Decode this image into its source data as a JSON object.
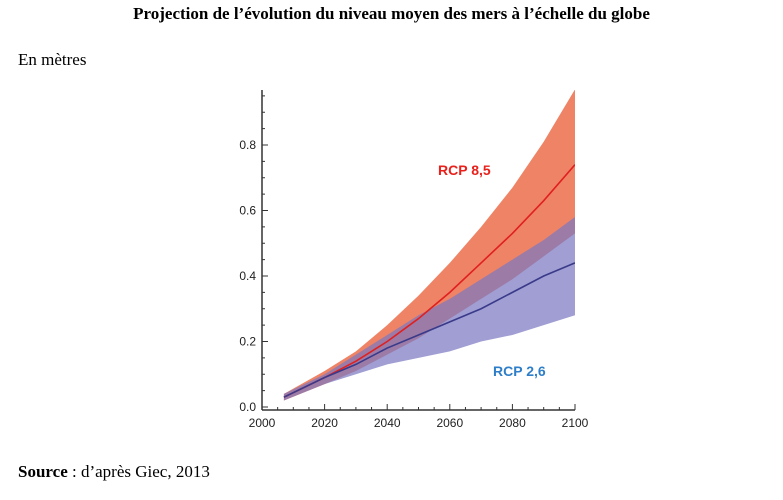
{
  "title": "Projection de l’évolution du niveau moyen des mers à l’échelle du globe",
  "unit_label": "En mètres",
  "source": {
    "bold": "Source",
    "rest": " : d’après Giec, 2013"
  },
  "chart_data": {
    "type": "area",
    "xlabel": "",
    "ylabel": "En mètres",
    "xlim": [
      2000,
      2100
    ],
    "ylim": [
      0,
      0.95
    ],
    "x_ticks": [
      2000,
      2020,
      2040,
      2060,
      2080,
      2100
    ],
    "y_ticks": [
      0.0,
      0.2,
      0.4,
      0.6,
      0.8
    ],
    "x_tick_labels": [
      "2000",
      "2020",
      "2040",
      "2060",
      "2080",
      "2100"
    ],
    "y_tick_labels": [
      "0.0",
      "0.2",
      "0.4",
      "0.6",
      "0.8"
    ],
    "grid": false,
    "series": [
      {
        "name": "RCP 8,5",
        "label_color": "#e8211c",
        "line_color": "#e02020",
        "band_color": "#ee7c5e",
        "x": [
          2007,
          2020,
          2030,
          2040,
          2050,
          2060,
          2070,
          2080,
          2090,
          2100
        ],
        "mean": [
          0.03,
          0.09,
          0.14,
          0.2,
          0.27,
          0.35,
          0.44,
          0.53,
          0.63,
          0.74
        ],
        "low": [
          0.02,
          0.07,
          0.11,
          0.16,
          0.21,
          0.27,
          0.33,
          0.39,
          0.46,
          0.53
        ],
        "high": [
          0.04,
          0.11,
          0.17,
          0.25,
          0.34,
          0.44,
          0.55,
          0.67,
          0.81,
          0.97
        ]
      },
      {
        "name": "RCP 2,6",
        "label_color": "#2e7ec9",
        "line_color": "#3a3a8a",
        "band_color": "#7c78c0",
        "x": [
          2007,
          2020,
          2030,
          2040,
          2050,
          2060,
          2070,
          2080,
          2090,
          2100
        ],
        "mean": [
          0.03,
          0.09,
          0.13,
          0.18,
          0.22,
          0.26,
          0.3,
          0.35,
          0.4,
          0.44
        ],
        "low": [
          0.02,
          0.07,
          0.1,
          0.13,
          0.15,
          0.17,
          0.2,
          0.22,
          0.25,
          0.28
        ],
        "high": [
          0.04,
          0.1,
          0.16,
          0.22,
          0.28,
          0.33,
          0.39,
          0.45,
          0.51,
          0.58
        ]
      }
    ]
  }
}
